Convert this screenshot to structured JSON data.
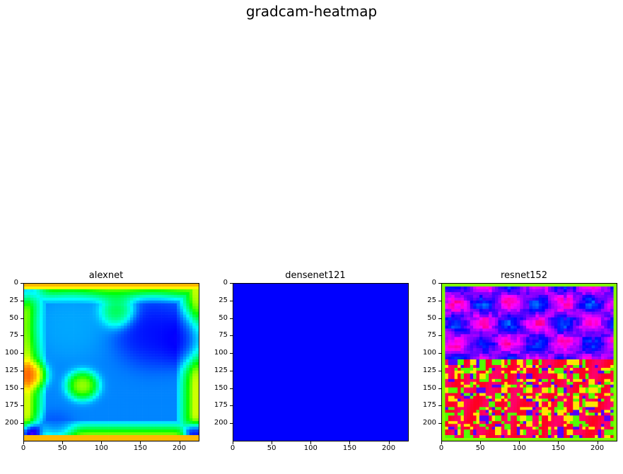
{
  "suptitle": "gradcam-heatmap",
  "chart_data": [
    {
      "type": "heatmap",
      "title": "alexnet",
      "colormap": "hsv",
      "xlim": [
        0,
        224
      ],
      "ylim": [
        224,
        0
      ],
      "xticks": [
        0,
        50,
        100,
        150,
        200
      ],
      "yticks": [
        0,
        25,
        50,
        75,
        100,
        125,
        150,
        175,
        200
      ],
      "grid": false,
      "description_values": "smooth saliency: high border, low interior (blue region near x 150-220, y 30-110), hot spot near x 75, y 145",
      "blobs": [
        {
          "x": 0,
          "y": 0,
          "v": 0.65,
          "s": 14
        },
        {
          "x": 75,
          "y": 145,
          "v": 0.12,
          "s": 10
        },
        {
          "x": 165,
          "y": 70,
          "v": 0.68,
          "s": 25
        },
        {
          "x": 205,
          "y": 80,
          "v": 0.7,
          "s": 18
        },
        {
          "x": 120,
          "y": 40,
          "v": 0.3,
          "s": 12
        },
        {
          "x": 40,
          "y": 205,
          "v": 0.62,
          "s": 12
        },
        {
          "x": 60,
          "y": 60,
          "v": 0.55,
          "s": 25
        },
        {
          "x": 8,
          "y": 130,
          "v": 0.02,
          "s": 10
        },
        {
          "x": 220,
          "y": 215,
          "v": 0.8,
          "s": 8
        },
        {
          "x": 10,
          "y": 215,
          "v": 0.85,
          "s": 8
        }
      ]
    },
    {
      "type": "heatmap",
      "title": "densenet121",
      "colormap": "hsv",
      "xlim": [
        0,
        224
      ],
      "ylim": [
        224,
        0
      ],
      "xticks": [
        0,
        50,
        100,
        150,
        200
      ],
      "yticks": [
        0,
        25,
        50,
        75,
        100,
        125,
        150,
        175,
        200
      ],
      "grid": false,
      "uniform_value": 0.667,
      "uniform_color": "#0000ff"
    },
    {
      "type": "heatmap",
      "title": "resnet152",
      "colormap": "hsv",
      "xlim": [
        0,
        224
      ],
      "ylim": [
        224,
        0
      ],
      "xticks": [
        0,
        50,
        100,
        150,
        200
      ],
      "yticks": [
        0,
        25,
        50,
        75,
        100,
        125,
        150,
        175,
        200
      ],
      "grid": false,
      "description_values": "noisy high-frequency map; magenta/blue upper region, red/yellow/green lower region"
    }
  ],
  "colors": {
    "text": "#000000",
    "background": "#ffffff"
  }
}
